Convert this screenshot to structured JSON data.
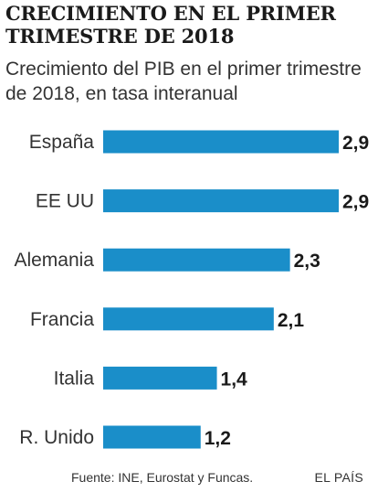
{
  "header": {
    "title": "CRECIMIENTO EN EL PRIMER TRIMESTRE DE 2018",
    "subtitle": "Crecimiento del PIB en el primer trimestre de 2018, en tasa interanual"
  },
  "footer": {
    "source": "Fuente: INE, Eurostat y Funcas.",
    "brand": "EL PAÍS"
  },
  "colors": {
    "bar": "#1a8ec9",
    "label": "#333333",
    "value": "#1a1a1a"
  },
  "chart_data": {
    "type": "bar",
    "orientation": "horizontal",
    "categories": [
      "España",
      "EE UU",
      "Alemania",
      "Francia",
      "Italia",
      "R. Unido"
    ],
    "values": [
      2.9,
      2.9,
      2.3,
      2.1,
      1.4,
      1.2
    ],
    "value_labels": [
      "2,9",
      "2,9",
      "2,3",
      "2,1",
      "1,4",
      "1,2"
    ],
    "xlim": [
      0,
      2.9
    ],
    "grid": false,
    "legend": "none"
  }
}
